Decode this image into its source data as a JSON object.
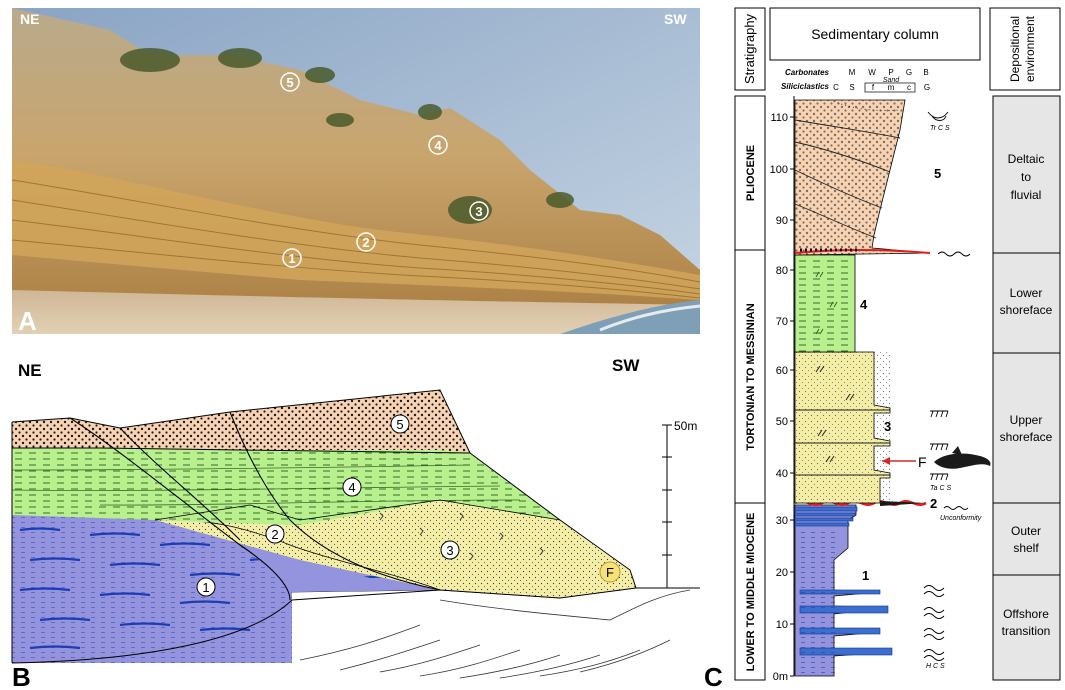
{
  "panelA": {
    "letter": "A",
    "ne": "NE",
    "sw": "SW",
    "units": [
      "1",
      "2",
      "3",
      "4",
      "5"
    ]
  },
  "panelB": {
    "letter": "B",
    "ne": "NE",
    "sw": "SW",
    "scale_label": "50m",
    "units": [
      "1",
      "2",
      "3",
      "4",
      "5"
    ],
    "fossil_label": "F"
  },
  "panelC": {
    "letter": "C",
    "headers": {
      "stratigraphy": "Stratigraphy",
      "column": "Sedimentary column",
      "environment_line1": "Depositional",
      "environment_line2": "environment"
    },
    "grain_scale": {
      "carbonates_label": "Carbonates",
      "siliciclastics_label": "Siliciclastics",
      "carbonate_classes": [
        "M",
        "W",
        "P",
        "G",
        "B"
      ],
      "siliciclastic_classes": [
        "C",
        "S",
        "f",
        "m",
        "c",
        "G"
      ],
      "sand_label": "Sand"
    },
    "depth_ticks": [
      "0m",
      "10",
      "20",
      "30",
      "40",
      "50",
      "60",
      "70",
      "80",
      "90",
      "100",
      "110"
    ],
    "stratigraphy": [
      "PLIOCENE",
      "TORTONIAN TO MESSINIAN",
      "LOWER TO MIDDLE MIOCENE"
    ],
    "environments": [
      [
        "Deltaic",
        "to",
        "fluvial"
      ],
      [
        "Lower",
        "shoreface"
      ],
      [
        "Upper",
        "shoreface"
      ],
      [
        "Outer",
        "shelf"
      ],
      [
        "Offshore",
        "transition"
      ]
    ],
    "unit_labels": [
      "5",
      "4",
      "3",
      "2",
      "1"
    ],
    "structure_labels": {
      "trough": "Tr C S",
      "tabular": "Ta C S",
      "unconformity": "Unconformity",
      "hummocky": "H C S"
    },
    "fossil_label": "F"
  }
}
